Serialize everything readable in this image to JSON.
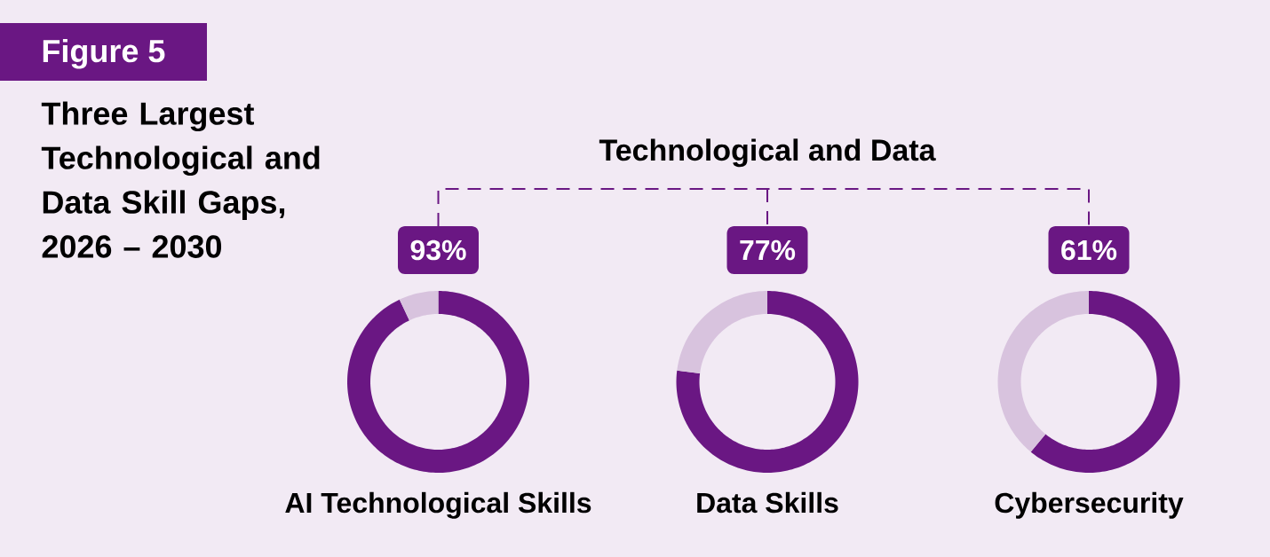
{
  "chart_data": [
    {
      "type": "other",
      "title": "Three Largest Technological and Data Skill Gaps, 2026 – 2030",
      "annotations": [
        "Figure 5",
        "Technological and Data"
      ]
    },
    {
      "type": "donut",
      "title": "AI Technological Skills",
      "categories": [
        null,
        null
      ],
      "values": [
        93,
        7
      ],
      "colors": [
        "#6a1783",
        "#d8c3de"
      ],
      "value_labels": [
        "93%",
        null
      ]
    },
    {
      "type": "donut",
      "title": "Data Skills",
      "categories": [
        null,
        null
      ],
      "values": [
        77,
        23
      ],
      "colors": [
        "#6a1783",
        "#d8c3de"
      ],
      "value_labels": [
        "77%",
        null
      ]
    },
    {
      "type": "donut",
      "title": "Cybersecurity",
      "categories": [
        null,
        null
      ],
      "values": [
        61,
        39
      ],
      "colors": [
        "#6a1783",
        "#d8c3de"
      ],
      "value_labels": [
        "61%",
        null
      ]
    }
  ]
}
